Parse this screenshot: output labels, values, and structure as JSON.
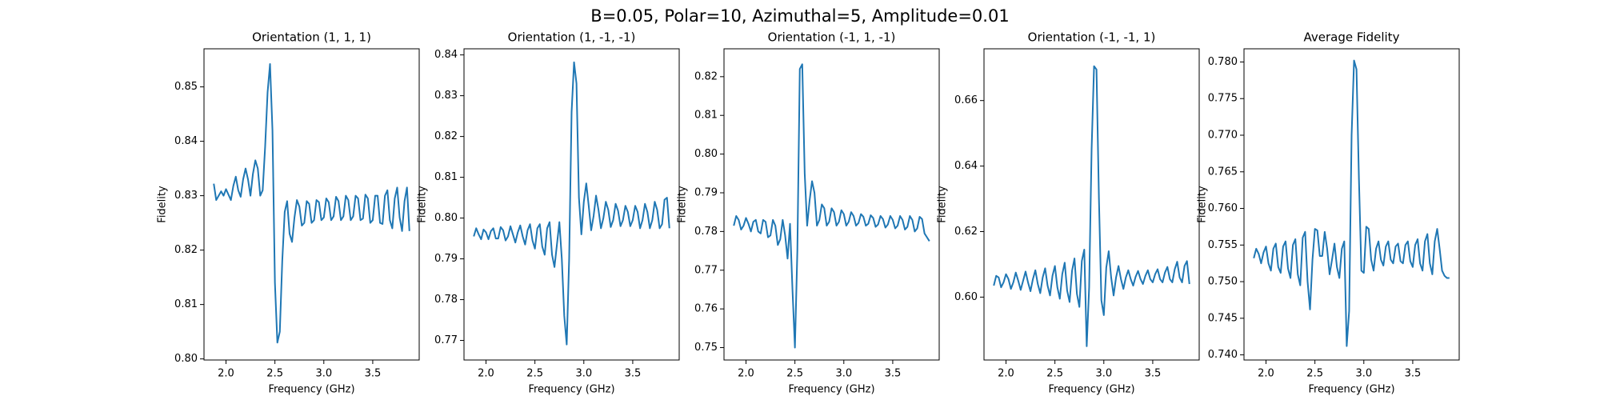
{
  "title": "B=0.05, Polar=10, Azimuthal=5, Amplitude=0.01",
  "chart_data": [
    {
      "type": "line",
      "title": "Orientation (1, 1, 1)",
      "xlabel": "Frequency (GHz)",
      "ylabel": "Fidelity",
      "x": [
        1.875,
        1.9,
        1.925,
        1.95,
        1.975,
        2,
        2.025,
        2.05,
        2.075,
        2.1,
        2.125,
        2.15,
        2.175,
        2.2,
        2.225,
        2.25,
        2.275,
        2.3,
        2.325,
        2.35,
        2.375,
        2.4,
        2.425,
        2.45,
        2.475,
        2.5,
        2.525,
        2.55,
        2.575,
        2.6,
        2.625,
        2.65,
        2.675,
        2.7,
        2.725,
        2.75,
        2.775,
        2.8,
        2.825,
        2.85,
        2.875,
        2.9,
        2.925,
        2.95,
        2.975,
        3,
        3.025,
        3.05,
        3.075,
        3.1,
        3.125,
        3.15,
        3.175,
        3.2,
        3.225,
        3.25,
        3.275,
        3.3,
        3.325,
        3.35,
        3.375,
        3.4,
        3.425,
        3.45,
        3.475,
        3.5,
        3.525,
        3.55,
        3.575,
        3.6,
        3.625,
        3.65,
        3.675,
        3.7,
        3.725,
        3.75,
        3.775,
        3.8,
        3.825,
        3.85,
        3.875
      ],
      "series": [
        {
          "color": "#1f77b4",
          "values": [
            0.8322,
            0.8292,
            0.83,
            0.8308,
            0.83,
            0.8312,
            0.8302,
            0.8292,
            0.8318,
            0.8335,
            0.831,
            0.8298,
            0.833,
            0.835,
            0.833,
            0.83,
            0.834,
            0.8365,
            0.835,
            0.83,
            0.831,
            0.839,
            0.849,
            0.8542,
            0.842,
            0.814,
            0.803,
            0.805,
            0.818,
            0.827,
            0.829,
            0.823,
            0.8215,
            0.826,
            0.8292,
            0.828,
            0.8245,
            0.825,
            0.829,
            0.8285,
            0.825,
            0.8255,
            0.8292,
            0.8288,
            0.8255,
            0.826,
            0.8295,
            0.8288,
            0.8255,
            0.8262,
            0.8298,
            0.829,
            0.8255,
            0.8262,
            0.83,
            0.8292,
            0.8255,
            0.8262,
            0.83,
            0.8295,
            0.8255,
            0.8258,
            0.8302,
            0.8295,
            0.825,
            0.8255,
            0.83,
            0.83,
            0.825,
            0.8248,
            0.83,
            0.831,
            0.8255,
            0.824,
            0.8295,
            0.8315,
            0.826,
            0.8235,
            0.829,
            0.8315,
            0.8235
          ]
        }
      ],
      "xlim": [
        1.775,
        3.975
      ],
      "ylim": [
        0.7998,
        0.857
      ],
      "xticks": [
        {
          "value": 2,
          "label": "2.0"
        },
        2.5,
        {
          "value": 3,
          "label": "3.0"
        },
        3.5
      ],
      "yticks": [
        {
          "value": 0.8,
          "label": "0.80"
        },
        0.81,
        0.82,
        0.83,
        0.84,
        0.85
      ]
    },
    {
      "type": "line",
      "title": "Orientation (1, -1, -1)",
      "xlabel": "Frequency (GHz)",
      "ylabel": "Fidelity",
      "x": [
        1.875,
        1.9,
        1.925,
        1.95,
        1.975,
        2,
        2.025,
        2.05,
        2.075,
        2.1,
        2.125,
        2.15,
        2.175,
        2.2,
        2.225,
        2.25,
        2.275,
        2.3,
        2.325,
        2.35,
        2.375,
        2.4,
        2.425,
        2.45,
        2.475,
        2.5,
        2.525,
        2.55,
        2.575,
        2.6,
        2.625,
        2.65,
        2.675,
        2.7,
        2.725,
        2.75,
        2.775,
        2.8,
        2.825,
        2.85,
        2.875,
        2.9,
        2.925,
        2.95,
        2.975,
        3,
        3.025,
        3.05,
        3.075,
        3.1,
        3.125,
        3.15,
        3.175,
        3.2,
        3.225,
        3.25,
        3.275,
        3.3,
        3.325,
        3.35,
        3.375,
        3.4,
        3.425,
        3.45,
        3.475,
        3.5,
        3.525,
        3.55,
        3.575,
        3.6,
        3.625,
        3.65,
        3.675,
        3.7,
        3.725,
        3.75,
        3.775,
        3.8,
        3.825,
        3.85,
        3.875
      ],
      "series": [
        {
          "color": "#1f77b4",
          "values": [
            0.7955,
            0.7975,
            0.796,
            0.7948,
            0.7972,
            0.7965,
            0.7948,
            0.7968,
            0.7975,
            0.795,
            0.795,
            0.7978,
            0.797,
            0.7945,
            0.7955,
            0.798,
            0.796,
            0.794,
            0.7965,
            0.7982,
            0.7955,
            0.7935,
            0.797,
            0.7985,
            0.7945,
            0.7925,
            0.7975,
            0.7985,
            0.793,
            0.791,
            0.7975,
            0.799,
            0.791,
            0.788,
            0.7935,
            0.799,
            0.79,
            0.776,
            0.769,
            0.79,
            0.826,
            0.8382,
            0.833,
            0.805,
            0.796,
            0.804,
            0.8085,
            0.803,
            0.797,
            0.8005,
            0.8055,
            0.802,
            0.7975,
            0.8,
            0.804,
            0.802,
            0.7978,
            0.7995,
            0.8035,
            0.8018,
            0.798,
            0.7995,
            0.803,
            0.8015,
            0.798,
            0.7995,
            0.803,
            0.8015,
            0.7975,
            0.7995,
            0.8035,
            0.8015,
            0.7975,
            0.7995,
            0.804,
            0.802,
            0.7975,
            0.7985,
            0.8045,
            0.805,
            0.7975
          ]
        }
      ],
      "xlim": [
        1.775,
        3.975
      ],
      "ylim": [
        0.7652,
        0.8415
      ],
      "xticks": [
        {
          "value": 2,
          "label": "2.0"
        },
        2.5,
        {
          "value": 3,
          "label": "3.0"
        },
        3.5
      ],
      "yticks": [
        0.77,
        0.78,
        0.79,
        {
          "value": 0.8,
          "label": "0.80"
        },
        0.81,
        0.82,
        0.83,
        0.84
      ]
    },
    {
      "type": "line",
      "title": "Orientation (-1, 1, -1)",
      "xlabel": "Frequency (GHz)",
      "ylabel": "Fidelity",
      "x": [
        1.875,
        1.9,
        1.925,
        1.95,
        1.975,
        2,
        2.025,
        2.05,
        2.075,
        2.1,
        2.125,
        2.15,
        2.175,
        2.2,
        2.225,
        2.25,
        2.275,
        2.3,
        2.325,
        2.35,
        2.375,
        2.4,
        2.425,
        2.45,
        2.475,
        2.5,
        2.525,
        2.55,
        2.575,
        2.6,
        2.625,
        2.65,
        2.675,
        2.7,
        2.725,
        2.75,
        2.775,
        2.8,
        2.825,
        2.85,
        2.875,
        2.9,
        2.925,
        2.95,
        2.975,
        3,
        3.025,
        3.05,
        3.075,
        3.1,
        3.125,
        3.15,
        3.175,
        3.2,
        3.225,
        3.25,
        3.275,
        3.3,
        3.325,
        3.35,
        3.375,
        3.4,
        3.425,
        3.45,
        3.475,
        3.5,
        3.525,
        3.55,
        3.575,
        3.6,
        3.625,
        3.65,
        3.675,
        3.7,
        3.725,
        3.75,
        3.775,
        3.8,
        3.825,
        3.85,
        3.875
      ],
      "series": [
        {
          "color": "#1f77b4",
          "values": [
            0.7815,
            0.784,
            0.783,
            0.7805,
            0.7815,
            0.7835,
            0.782,
            0.78,
            0.7825,
            0.783,
            0.78,
            0.7795,
            0.783,
            0.7825,
            0.7785,
            0.779,
            0.783,
            0.7815,
            0.7765,
            0.778,
            0.783,
            0.779,
            0.773,
            0.782,
            0.765,
            0.75,
            0.775,
            0.822,
            0.8232,
            0.795,
            0.7815,
            0.788,
            0.793,
            0.79,
            0.7815,
            0.783,
            0.787,
            0.786,
            0.7815,
            0.7825,
            0.786,
            0.785,
            0.7815,
            0.7825,
            0.7855,
            0.7845,
            0.7815,
            0.7825,
            0.785,
            0.784,
            0.7815,
            0.7822,
            0.7845,
            0.7838,
            0.7815,
            0.782,
            0.7842,
            0.7835,
            0.7812,
            0.7818,
            0.784,
            0.7832,
            0.781,
            0.7818,
            0.784,
            0.783,
            0.7808,
            0.7815,
            0.784,
            0.783,
            0.7805,
            0.7812,
            0.784,
            0.783,
            0.78,
            0.7808,
            0.7838,
            0.7832,
            0.7795,
            0.7785,
            0.7775
          ]
        }
      ],
      "xlim": [
        1.775,
        3.975
      ],
      "ylim": [
        0.7468,
        0.8272
      ],
      "xticks": [
        {
          "value": 2,
          "label": "2.0"
        },
        2.5,
        {
          "value": 3,
          "label": "3.0"
        },
        3.5
      ],
      "yticks": [
        0.75,
        0.76,
        0.77,
        0.78,
        0.79,
        {
          "value": 0.8,
          "label": "0.80"
        },
        0.81,
        0.82
      ]
    },
    {
      "type": "line",
      "title": "Orientation (-1, -1, 1)",
      "xlabel": "Frequency (GHz)",
      "ylabel": "Fidelity",
      "x": [
        1.875,
        1.9,
        1.925,
        1.95,
        1.975,
        2,
        2.025,
        2.05,
        2.075,
        2.1,
        2.125,
        2.15,
        2.175,
        2.2,
        2.225,
        2.25,
        2.275,
        2.3,
        2.325,
        2.35,
        2.375,
        2.4,
        2.425,
        2.45,
        2.475,
        2.5,
        2.525,
        2.55,
        2.575,
        2.6,
        2.625,
        2.65,
        2.675,
        2.7,
        2.725,
        2.75,
        2.775,
        2.8,
        2.825,
        2.85,
        2.875,
        2.9,
        2.925,
        2.95,
        2.975,
        3,
        3.025,
        3.05,
        3.075,
        3.1,
        3.125,
        3.15,
        3.175,
        3.2,
        3.225,
        3.25,
        3.275,
        3.3,
        3.325,
        3.35,
        3.375,
        3.4,
        3.425,
        3.45,
        3.475,
        3.5,
        3.525,
        3.55,
        3.575,
        3.6,
        3.625,
        3.65,
        3.675,
        3.7,
        3.725,
        3.75,
        3.775,
        3.8,
        3.825,
        3.85,
        3.875
      ],
      "series": [
        {
          "color": "#1f77b4",
          "values": [
            0.6035,
            0.6065,
            0.606,
            0.603,
            0.6045,
            0.607,
            0.6055,
            0.6025,
            0.6045,
            0.6075,
            0.605,
            0.6022,
            0.605,
            0.6078,
            0.6045,
            0.6018,
            0.6055,
            0.6082,
            0.604,
            0.6012,
            0.606,
            0.6088,
            0.6035,
            0.6005,
            0.6065,
            0.6095,
            0.603,
            0.5995,
            0.607,
            0.6105,
            0.602,
            0.5985,
            0.608,
            0.6118,
            0.601,
            0.597,
            0.611,
            0.6145,
            0.585,
            0.603,
            0.645,
            0.6705,
            0.6695,
            0.63,
            0.599,
            0.5945,
            0.609,
            0.614,
            0.606,
            0.6005,
            0.606,
            0.6095,
            0.6055,
            0.6025,
            0.606,
            0.6082,
            0.6055,
            0.6035,
            0.6062,
            0.608,
            0.6055,
            0.604,
            0.6065,
            0.6082,
            0.6055,
            0.6045,
            0.607,
            0.6085,
            0.6055,
            0.6045,
            0.6075,
            0.6092,
            0.6055,
            0.6045,
            0.6085,
            0.6108,
            0.606,
            0.6045,
            0.6095,
            0.611,
            0.604
          ]
        }
      ],
      "xlim": [
        1.775,
        3.975
      ],
      "ylim": [
        0.5808,
        0.6758
      ],
      "xticks": [
        {
          "value": 2,
          "label": "2.0"
        },
        2.5,
        {
          "value": 3,
          "label": "3.0"
        },
        3.5
      ],
      "yticks": [
        {
          "value": 0.6,
          "label": "0.60"
        },
        0.62,
        0.64,
        0.66
      ]
    },
    {
      "type": "line",
      "title": "Average Fidelity",
      "xlabel": "Frequency (GHz)",
      "ylabel": "Fidelity",
      "x": [
        1.875,
        1.9,
        1.925,
        1.95,
        1.975,
        2,
        2.025,
        2.05,
        2.075,
        2.1,
        2.125,
        2.15,
        2.175,
        2.2,
        2.225,
        2.25,
        2.275,
        2.3,
        2.325,
        2.35,
        2.375,
        2.4,
        2.425,
        2.45,
        2.475,
        2.5,
        2.525,
        2.55,
        2.575,
        2.6,
        2.625,
        2.65,
        2.675,
        2.7,
        2.725,
        2.75,
        2.775,
        2.8,
        2.825,
        2.85,
        2.875,
        2.9,
        2.925,
        2.95,
        2.975,
        3,
        3.025,
        3.05,
        3.075,
        3.1,
        3.125,
        3.15,
        3.175,
        3.2,
        3.225,
        3.25,
        3.275,
        3.3,
        3.325,
        3.35,
        3.375,
        3.4,
        3.425,
        3.45,
        3.475,
        3.5,
        3.525,
        3.55,
        3.575,
        3.6,
        3.625,
        3.65,
        3.675,
        3.7,
        3.725,
        3.75,
        3.775,
        3.8,
        3.825,
        3.85,
        3.875
      ],
      "series": [
        {
          "color": "#1f77b4",
          "values": [
            0.7532,
            0.7545,
            0.7538,
            0.7525,
            0.754,
            0.7548,
            0.7525,
            0.7515,
            0.7545,
            0.7552,
            0.752,
            0.7512,
            0.7548,
            0.7555,
            0.7518,
            0.7505,
            0.755,
            0.7558,
            0.751,
            0.7495,
            0.756,
            0.7568,
            0.75,
            0.7462,
            0.753,
            0.7572,
            0.757,
            0.7535,
            0.7535,
            0.7568,
            0.7545,
            0.751,
            0.753,
            0.7552,
            0.752,
            0.7505,
            0.7545,
            0.7555,
            0.7412,
            0.746,
            0.77,
            0.7802,
            0.779,
            0.764,
            0.7515,
            0.7512,
            0.7575,
            0.7572,
            0.753,
            0.7515,
            0.7545,
            0.7555,
            0.753,
            0.7522,
            0.7548,
            0.7555,
            0.753,
            0.7525,
            0.7548,
            0.7552,
            0.7528,
            0.7525,
            0.755,
            0.7555,
            0.7528,
            0.752,
            0.755,
            0.7558,
            0.7525,
            0.7515,
            0.7555,
            0.7565,
            0.7525,
            0.751,
            0.7555,
            0.7572,
            0.7545,
            0.7515,
            0.7508,
            0.7505,
            0.7505
          ]
        }
      ],
      "xlim": [
        1.775,
        3.975
      ],
      "ylim": [
        0.7393,
        0.7818
      ],
      "xticks": [
        {
          "value": 2,
          "label": "2.0"
        },
        2.5,
        {
          "value": 3,
          "label": "3.0"
        },
        3.5
      ],
      "yticks": [
        {
          "value": 0.74,
          "label": "0.740"
        },
        0.745,
        {
          "value": 0.75,
          "label": "0.750"
        },
        0.755,
        {
          "value": 0.76,
          "label": "0.760"
        },
        0.765,
        {
          "value": 0.77,
          "label": "0.770"
        },
        0.775,
        {
          "value": 0.78,
          "label": "0.780"
        }
      ]
    }
  ]
}
